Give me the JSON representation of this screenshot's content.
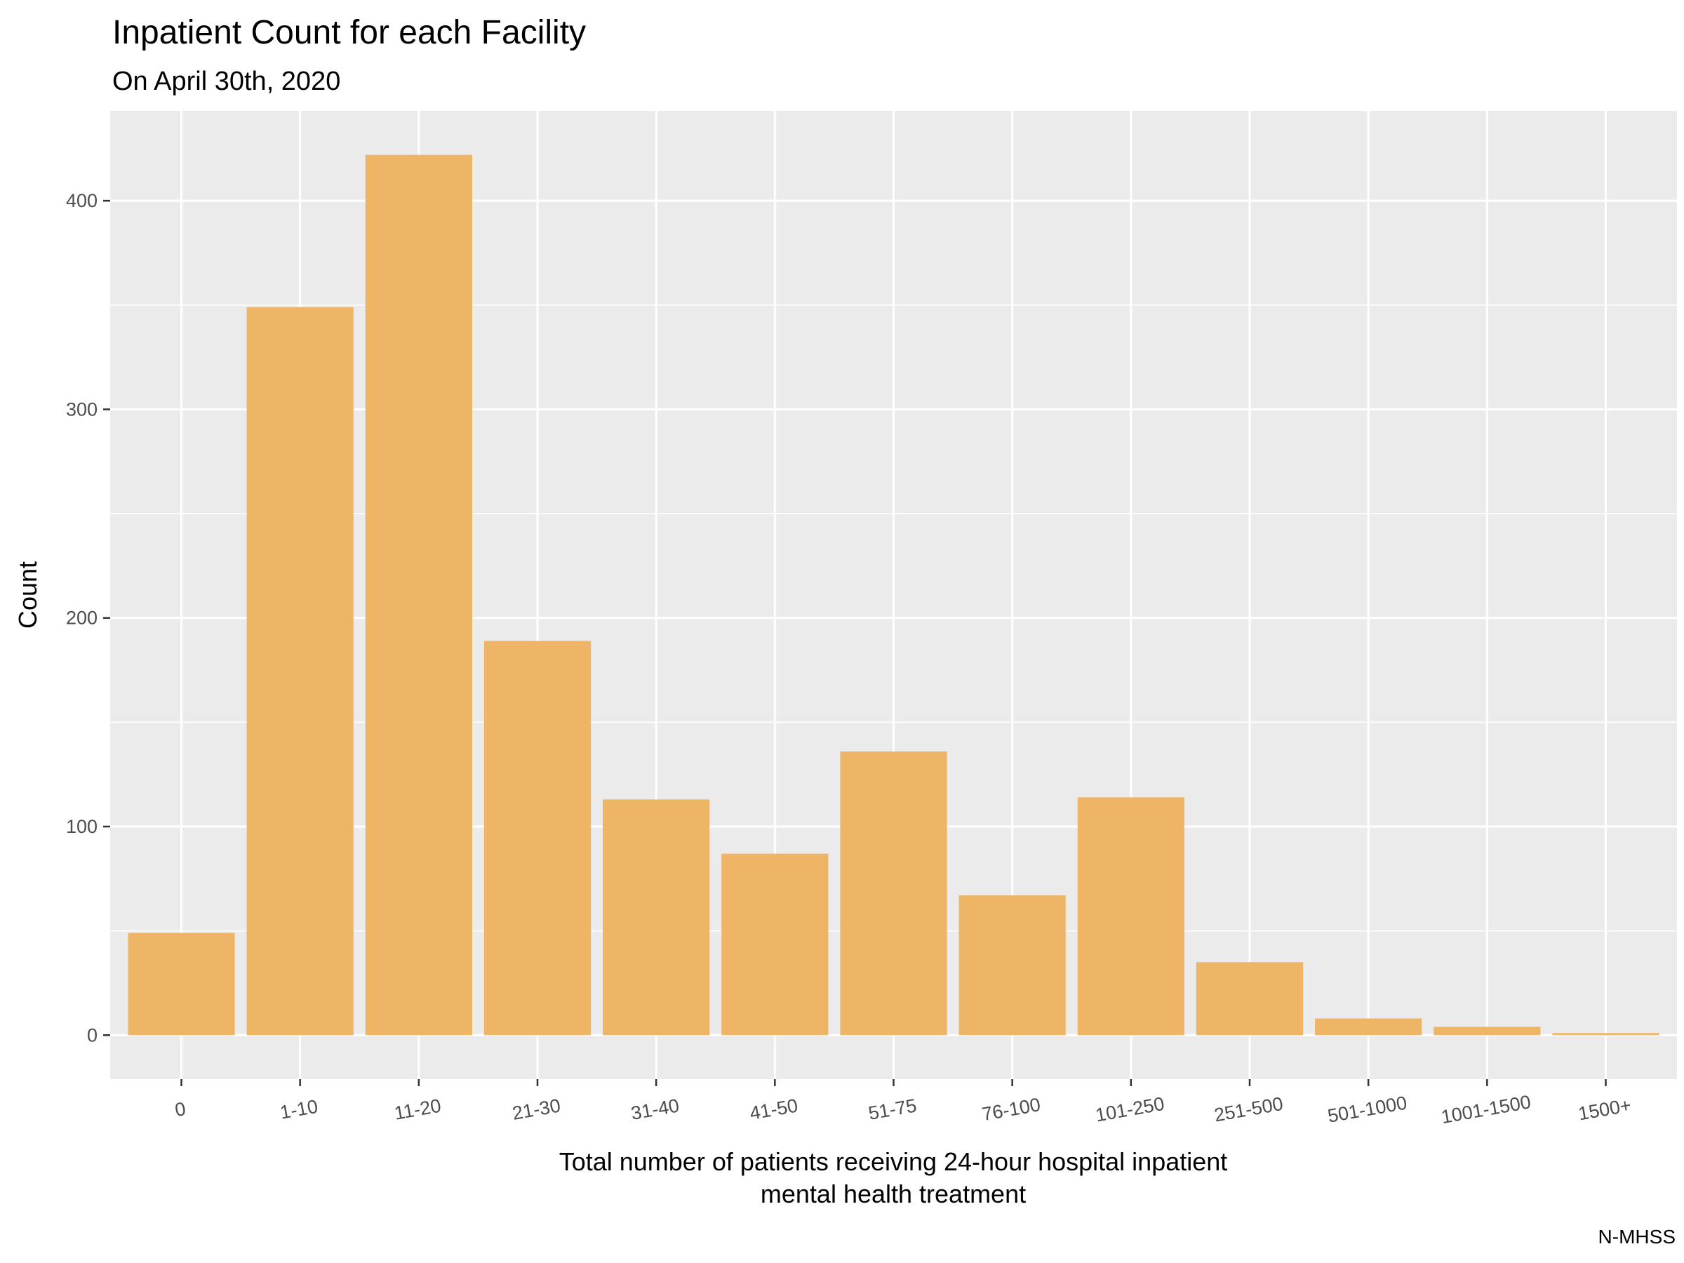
{
  "chart_data": {
    "type": "bar",
    "title": "Inpatient Count for each Facility",
    "subtitle": "On April 30th, 2020",
    "xlabel": [
      "Total number of patients receiving 24-hour hospital inpatient",
      "mental health treatment"
    ],
    "ylabel": "Count",
    "caption": "N-MHSS",
    "categories": [
      "0",
      "1-10",
      "11-20",
      "21-30",
      "31-40",
      "41-50",
      "51-75",
      "76-100",
      "101-250",
      "251-500",
      "501-1000",
      "1001-1500",
      "1500+"
    ],
    "values": [
      49,
      349,
      422,
      189,
      113,
      87,
      136,
      67,
      114,
      35,
      8,
      4,
      1
    ],
    "ylim": [
      -21.1,
      443.1
    ],
    "yticks": [
      0,
      100,
      200,
      300,
      400
    ],
    "grid": true,
    "legend": "none",
    "colors": {
      "bar": "#EFB566",
      "panel": "#EBEBEB",
      "grid": "#FFFFFF"
    }
  }
}
